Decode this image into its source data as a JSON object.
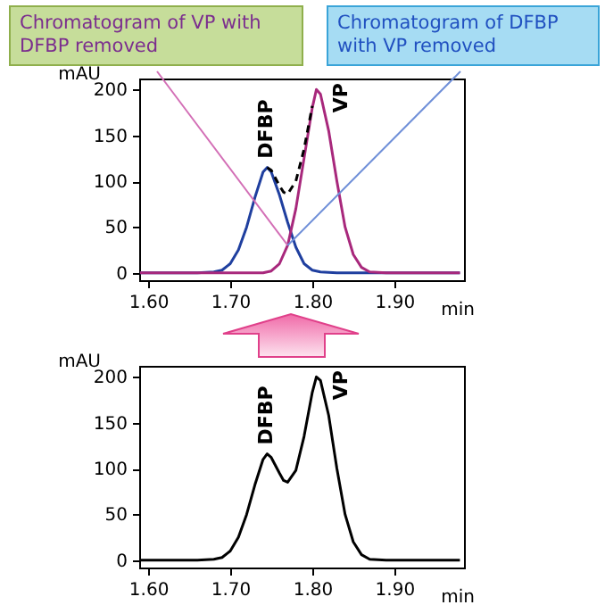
{
  "chart_data": [
    {
      "type": "line",
      "xlabel": "min",
      "ylabel": "mAU",
      "xlim": [
        1.589,
        1.985
      ],
      "ylim": [
        -8,
        212
      ],
      "xticks": [
        {
          "value": 1.6,
          "label": "1.60"
        },
        {
          "value": 1.7,
          "label": "1.70"
        },
        {
          "value": 1.8,
          "label": "1.80"
        },
        {
          "value": 1.9,
          "label": "1.90"
        }
      ],
      "yticks": [
        0,
        50,
        100,
        150,
        200
      ],
      "series": [
        {
          "name": "DFBP",
          "color": "#1f3f9f",
          "x": [
            1.59,
            1.66,
            1.68,
            1.69,
            1.7,
            1.71,
            1.72,
            1.73,
            1.74,
            1.745,
            1.75,
            1.76,
            1.77,
            1.78,
            1.79,
            1.8,
            1.81,
            1.83,
            1.98
          ],
          "values": [
            0,
            0,
            1,
            3,
            10,
            25,
            50,
            82,
            110,
            115,
            110,
            85,
            55,
            28,
            10,
            3,
            1,
            0,
            0
          ]
        },
        {
          "name": "VP",
          "color": "#a8287c",
          "x": [
            1.59,
            1.74,
            1.75,
            1.76,
            1.77,
            1.78,
            1.79,
            1.8,
            1.805,
            1.81,
            1.82,
            1.83,
            1.84,
            1.85,
            1.86,
            1.87,
            1.89,
            1.98
          ],
          "values": [
            0,
            0,
            2,
            10,
            30,
            70,
            125,
            180,
            200,
            195,
            155,
            100,
            50,
            20,
            6,
            1,
            0,
            0
          ]
        },
        {
          "color": "#000000",
          "line_style": "dashed",
          "x": [
            1.745,
            1.75,
            1.76,
            1.765,
            1.77,
            1.78,
            1.79,
            1.8
          ],
          "values": [
            115,
            112,
            95,
            88,
            86,
            100,
            135,
            182
          ]
        }
      ],
      "annotations": [
        {
          "text": "Chromatogram of VP with DFBP removed",
          "x": 1.77,
          "y": 30
        },
        {
          "text": "Chromatogram of DFBP with VP removed",
          "x": 1.77,
          "y": 30
        }
      ]
    },
    {
      "type": "line",
      "xlabel": "min",
      "ylabel": "mAU",
      "xlim": [
        1.589,
        1.985
      ],
      "ylim": [
        -8,
        212
      ],
      "xticks": [
        {
          "value": 1.6,
          "label": "1.60"
        },
        {
          "value": 1.7,
          "label": "1.70"
        },
        {
          "value": 1.8,
          "label": "1.80"
        },
        {
          "value": 1.9,
          "label": "1.90"
        }
      ],
      "yticks": [
        0,
        50,
        100,
        150,
        200
      ],
      "series": [
        {
          "color": "#000000",
          "x": [
            1.59,
            1.66,
            1.68,
            1.69,
            1.7,
            1.71,
            1.72,
            1.73,
            1.74,
            1.745,
            1.75,
            1.76,
            1.765,
            1.77,
            1.78,
            1.79,
            1.8,
            1.805,
            1.81,
            1.82,
            1.83,
            1.84,
            1.85,
            1.86,
            1.87,
            1.89,
            1.98
          ],
          "values": [
            0,
            0,
            1,
            3,
            10,
            25,
            50,
            82,
            110,
            116,
            112,
            95,
            87,
            85,
            98,
            135,
            183,
            200,
            196,
            158,
            100,
            50,
            20,
            6,
            1,
            0,
            0
          ]
        }
      ],
      "annotations": [
        {
          "text": "DFBP",
          "x": 1.745,
          "y": 116
        },
        {
          "text": "VP",
          "x": 1.805,
          "y": 200
        }
      ]
    }
  ]
}
